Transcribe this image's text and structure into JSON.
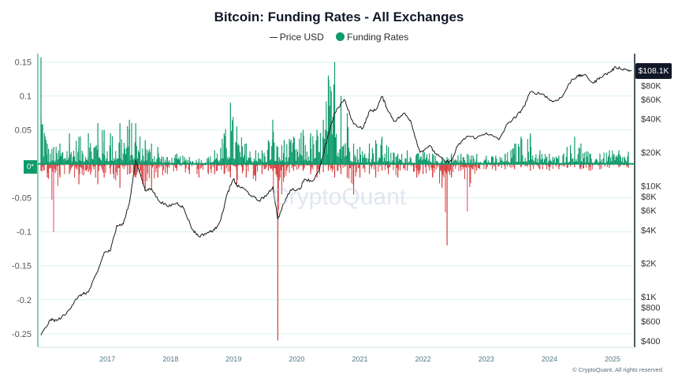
{
  "chart_data": {
    "type": "bar",
    "title": "Bitcoin: Funding Rates - All Exchanges",
    "legend": {
      "placement": "top-center"
    },
    "grid": true,
    "y_left": {
      "ticks": [
        "0.15",
        "0.1",
        "0.05",
        "0*",
        "-0.05",
        "-0.1",
        "-0.15",
        "-0.2",
        "-0.25"
      ],
      "range": [
        -0.27,
        0.16
      ]
    },
    "y_right": {
      "scale": "log",
      "ticks": [
        "$80K",
        "$60K",
        "$40K",
        "$20K",
        "$10K",
        "$8K",
        "$6K",
        "$4K",
        "$2K",
        "$1K",
        "$800",
        "$600",
        "$400"
      ],
      "range": [
        350,
        150000
      ]
    },
    "x_axis": {
      "ticks": [
        "2017",
        "2018",
        "2019",
        "2020",
        "2021",
        "2022",
        "2023",
        "2024",
        "2025"
      ],
      "range": [
        2016.4,
        2025.85
      ]
    },
    "current_price_label": "$108.1K",
    "zero_label": "0*",
    "watermark": "CryptoQuant",
    "footer": "© CryptoQuant. All rights reserved",
    "series": [
      {
        "name": "Price USD",
        "type": "line",
        "color": "#1a1a1a",
        "points": [
          [
            2016.45,
            450
          ],
          [
            2016.6,
            620
          ],
          [
            2016.7,
            610
          ],
          [
            2016.85,
            700
          ],
          [
            2017.0,
            950
          ],
          [
            2017.1,
            1050
          ],
          [
            2017.2,
            1100
          ],
          [
            2017.35,
            1700
          ],
          [
            2017.45,
            2500
          ],
          [
            2017.55,
            2600
          ],
          [
            2017.65,
            4400
          ],
          [
            2017.75,
            4500
          ],
          [
            2017.85,
            7000
          ],
          [
            2017.95,
            17000
          ],
          [
            2018.0,
            14000
          ],
          [
            2018.1,
            9000
          ],
          [
            2018.2,
            9500
          ],
          [
            2018.3,
            7500
          ],
          [
            2018.45,
            6500
          ],
          [
            2018.6,
            7000
          ],
          [
            2018.7,
            6400
          ],
          [
            2018.85,
            4000
          ],
          [
            2018.95,
            3500
          ],
          [
            2019.1,
            3800
          ],
          [
            2019.2,
            4000
          ],
          [
            2019.3,
            5000
          ],
          [
            2019.4,
            8500
          ],
          [
            2019.5,
            11500
          ],
          [
            2019.55,
            10000
          ],
          [
            2019.65,
            9500
          ],
          [
            2019.8,
            8000
          ],
          [
            2019.9,
            7300
          ],
          [
            2020.05,
            8500
          ],
          [
            2020.12,
            9800
          ],
          [
            2020.2,
            5000
          ],
          [
            2020.3,
            7000
          ],
          [
            2020.4,
            9200
          ],
          [
            2020.55,
            9300
          ],
          [
            2020.62,
            11500
          ],
          [
            2020.75,
            11000
          ],
          [
            2020.85,
            13500
          ],
          [
            2020.92,
            19000
          ],
          [
            2021.0,
            29000
          ],
          [
            2021.1,
            45000
          ],
          [
            2021.25,
            60000
          ],
          [
            2021.4,
            36000
          ],
          [
            2021.55,
            33000
          ],
          [
            2021.65,
            47000
          ],
          [
            2021.75,
            48000
          ],
          [
            2021.85,
            64000
          ],
          [
            2021.95,
            47000
          ],
          [
            2022.05,
            38000
          ],
          [
            2022.2,
            45000
          ],
          [
            2022.3,
            39000
          ],
          [
            2022.45,
            20000
          ],
          [
            2022.6,
            23000
          ],
          [
            2022.7,
            19500
          ],
          [
            2022.85,
            16500
          ],
          [
            2022.95,
            16600
          ],
          [
            2023.05,
            23000
          ],
          [
            2023.2,
            28000
          ],
          [
            2023.35,
            27000
          ],
          [
            2023.5,
            30000
          ],
          [
            2023.7,
            26000
          ],
          [
            2023.85,
            37000
          ],
          [
            2023.98,
            42000
          ],
          [
            2024.1,
            52000
          ],
          [
            2024.2,
            70000
          ],
          [
            2024.4,
            67000
          ],
          [
            2024.55,
            57000
          ],
          [
            2024.7,
            63000
          ],
          [
            2024.85,
            90000
          ],
          [
            2024.95,
            97000
          ],
          [
            2025.05,
            100000
          ],
          [
            2025.2,
            84000
          ],
          [
            2025.3,
            95000
          ],
          [
            2025.45,
            105000
          ],
          [
            2025.55,
            117000
          ],
          [
            2025.7,
            112000
          ],
          [
            2025.8,
            108100
          ]
        ]
      },
      {
        "name": "Funding Rates",
        "type": "bar",
        "positive_color": "#0f9a6c",
        "negative_color": "#d83b3b",
        "outlier_color": "#e85aa0",
        "bins": [
          [
            2016.45,
            0.157,
            -0.01
          ],
          [
            2016.55,
            0.03,
            -0.02
          ],
          [
            2016.65,
            0.025,
            -0.1
          ],
          [
            2016.75,
            0.03,
            -0.02
          ],
          [
            2016.9,
            0.045,
            -0.015
          ],
          [
            2017.05,
            0.04,
            -0.03
          ],
          [
            2017.2,
            0.045,
            -0.012
          ],
          [
            2017.35,
            0.06,
            -0.03
          ],
          [
            2017.45,
            0.05,
            -0.02
          ],
          [
            2017.55,
            0.045,
            -0.015
          ],
          [
            2017.7,
            0.06,
            -0.035
          ],
          [
            2017.85,
            0.065,
            -0.015
          ],
          [
            2017.95,
            0.06,
            -0.02
          ],
          [
            2018.1,
            0.035,
            -0.04
          ],
          [
            2018.2,
            0.03,
            -0.035
          ],
          [
            2018.3,
            0.025,
            -0.02
          ],
          [
            2018.45,
            0.01,
            -0.015
          ],
          [
            2018.6,
            0.015,
            -0.01
          ],
          [
            2018.8,
            0.01,
            -0.015
          ],
          [
            2018.95,
            0.008,
            -0.02
          ],
          [
            2019.1,
            0.01,
            -0.015
          ],
          [
            2019.2,
            0.02,
            -0.015
          ],
          [
            2019.35,
            0.045,
            -0.015
          ],
          [
            2019.45,
            0.09,
            -0.02
          ],
          [
            2019.55,
            0.055,
            -0.03
          ],
          [
            2019.7,
            0.03,
            -0.02
          ],
          [
            2019.85,
            0.02,
            -0.025
          ],
          [
            2019.95,
            0.02,
            -0.015
          ],
          [
            2020.05,
            0.035,
            -0.01
          ],
          [
            2020.12,
            0.065,
            -0.01
          ],
          [
            2020.2,
            0.025,
            -0.26
          ],
          [
            2020.3,
            0.035,
            -0.02
          ],
          [
            2020.45,
            0.04,
            -0.01
          ],
          [
            2020.6,
            0.05,
            -0.01
          ],
          [
            2020.72,
            0.045,
            -0.015
          ],
          [
            2020.82,
            0.05,
            -0.02
          ],
          [
            2020.92,
            0.065,
            -0.012
          ],
          [
            2021.0,
            0.13,
            -0.01
          ],
          [
            2021.1,
            0.15,
            -0.02
          ],
          [
            2021.2,
            0.1,
            -0.015
          ],
          [
            2021.3,
            0.075,
            -0.02
          ],
          [
            2021.4,
            0.03,
            -0.045
          ],
          [
            2021.5,
            0.025,
            -0.02
          ],
          [
            2021.65,
            0.03,
            -0.015
          ],
          [
            2021.75,
            0.035,
            -0.02
          ],
          [
            2021.85,
            0.04,
            -0.01
          ],
          [
            2021.95,
            0.025,
            -0.015
          ],
          [
            2022.1,
            0.015,
            -0.02
          ],
          [
            2022.25,
            0.02,
            -0.01
          ],
          [
            2022.4,
            0.015,
            -0.02
          ],
          [
            2022.5,
            0.02,
            -0.015
          ],
          [
            2022.65,
            0.015,
            -0.02
          ],
          [
            2022.8,
            0.01,
            -0.035
          ],
          [
            2022.88,
            0.01,
            -0.12
          ],
          [
            2022.95,
            0.015,
            -0.02
          ],
          [
            2023.1,
            0.015,
            -0.01
          ],
          [
            2023.2,
            0.015,
            -0.07
          ],
          [
            2023.35,
            0.015,
            -0.01
          ],
          [
            2023.5,
            0.012,
            -0.008
          ],
          [
            2023.65,
            0.012,
            -0.01
          ],
          [
            2023.8,
            0.015,
            -0.008
          ],
          [
            2023.95,
            0.03,
            -0.008
          ],
          [
            2024.05,
            0.04,
            -0.005
          ],
          [
            2024.2,
            0.045,
            -0.01
          ],
          [
            2024.35,
            0.02,
            -0.008
          ],
          [
            2024.5,
            0.015,
            -0.01
          ],
          [
            2024.65,
            0.012,
            -0.008
          ],
          [
            2024.78,
            0.025,
            -0.006
          ],
          [
            2024.9,
            0.04,
            -0.005
          ],
          [
            2025.0,
            0.03,
            -0.008
          ],
          [
            2025.15,
            0.015,
            -0.01
          ],
          [
            2025.3,
            0.015,
            -0.008
          ],
          [
            2025.45,
            0.02,
            -0.006
          ],
          [
            2025.6,
            0.02,
            -0.005
          ],
          [
            2025.75,
            0.018,
            -0.006
          ]
        ]
      }
    ]
  }
}
